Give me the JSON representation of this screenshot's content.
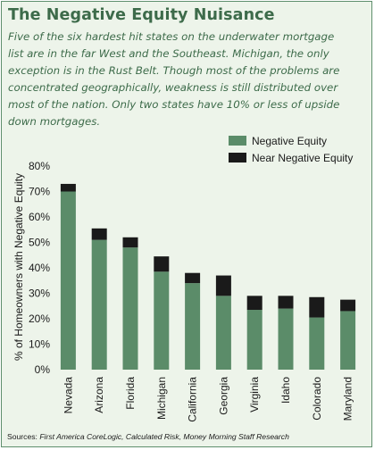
{
  "header": {
    "title": "The Negative Equity Nuisance",
    "subtitle_lines": [
      "Five of the six hardest hit states on the underwater mortgage",
      "list are in the far West and the Southeast. Michigan, the only",
      "exception is in the Rust Belt. Though most of the problems are",
      "concentrated geographically, weakness is still distributed over",
      "most of the nation. Only two states have 10% or less of upside",
      "down mortgages."
    ]
  },
  "footer": {
    "sources_label": "Sources:",
    "sources_text": "First America CoreLogic, Calculated Risk, Money Morning Staff Research"
  },
  "colors": {
    "negative_equity": "#5b8c69",
    "near_negative_equity": "#1a1a1a",
    "text_accent": "#3d6b4a",
    "background": "#edf4ea"
  },
  "chart_data": {
    "type": "bar",
    "stacked": true,
    "ylabel": "% of Homeowners with Negative Equity",
    "xlabel": "",
    "ylim": [
      0,
      80
    ],
    "yticks": [
      "0%",
      "10%",
      "20%",
      "30%",
      "40%",
      "50%",
      "60%",
      "70%",
      "80%"
    ],
    "grid": false,
    "legend_position": "top-right",
    "categories": [
      "Nevada",
      "Arizona",
      "Florida",
      "Michigan",
      "California",
      "Georgia",
      "Virginia",
      "Idaho",
      "Colorado",
      "Maryland"
    ],
    "series": [
      {
        "name": "Negative Equity",
        "values": [
          70,
          51,
          48,
          38.5,
          34,
          29,
          23.5,
          24,
          20.5,
          23
        ]
      },
      {
        "name": "Near Negative Equity",
        "values": [
          3,
          4.5,
          4,
          6,
          4,
          8,
          5.5,
          5,
          8,
          4.5
        ]
      }
    ]
  }
}
